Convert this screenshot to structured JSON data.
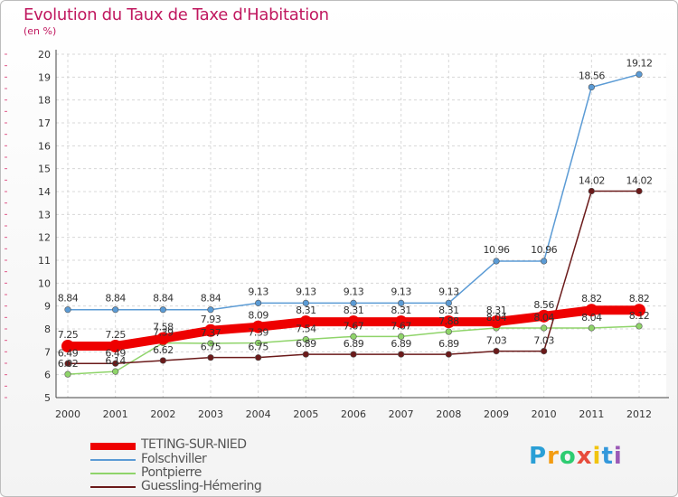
{
  "chart_data": {
    "type": "line",
    "title": "Evolution du Taux de Taxe d'Habitation",
    "subtitle": "(en %)",
    "x": [
      "2000",
      "2001",
      "2002",
      "2003",
      "2004",
      "2005",
      "2006",
      "2007",
      "2008",
      "2009",
      "2010",
      "2011",
      "2012"
    ],
    "ylim": [
      5,
      20
    ],
    "yticks": [
      5,
      6,
      7,
      8,
      9,
      10,
      11,
      12,
      13,
      14,
      15,
      16,
      17,
      18,
      19,
      20
    ],
    "grid": true,
    "legend_position": "bottom-left",
    "series": [
      {
        "name": "TETING-SUR-NIED",
        "color": "#ee0000",
        "values": [
          7.25,
          7.25,
          7.58,
          7.93,
          8.09,
          8.31,
          8.31,
          8.31,
          8.31,
          8.31,
          8.56,
          8.82,
          8.82
        ]
      },
      {
        "name": "Folschviller",
        "color": "#5b9bd5",
        "values": [
          8.84,
          8.84,
          8.84,
          8.84,
          9.13,
          9.13,
          9.13,
          9.13,
          9.13,
          10.96,
          10.96,
          18.56,
          19.12
        ]
      },
      {
        "name": "Pontpierre",
        "color": "#8fd46a",
        "values": [
          6.02,
          6.14,
          7.39,
          7.37,
          7.39,
          7.54,
          7.67,
          7.67,
          7.88,
          8.04,
          8.04,
          8.04,
          8.12
        ]
      },
      {
        "name": "Guessling-Hémering",
        "color": "#6b1a1a",
        "values": [
          6.49,
          6.49,
          6.62,
          6.75,
          6.75,
          6.89,
          6.89,
          6.89,
          6.89,
          7.03,
          7.03,
          14.02,
          14.02
        ]
      }
    ]
  },
  "legend": {
    "items": [
      "TETING-SUR-NIED",
      "Folschviller",
      "Pontpierre",
      "Guessling-Hémering"
    ]
  },
  "logo": {
    "letters": [
      "P",
      "r",
      "o",
      "x",
      "i",
      "t",
      "i"
    ],
    "colors": [
      "#2a9fd6",
      "#f39c12",
      "#2ecc71",
      "#e74c3c",
      "#f1c40f",
      "#3498db",
      "#9b59b6"
    ]
  }
}
